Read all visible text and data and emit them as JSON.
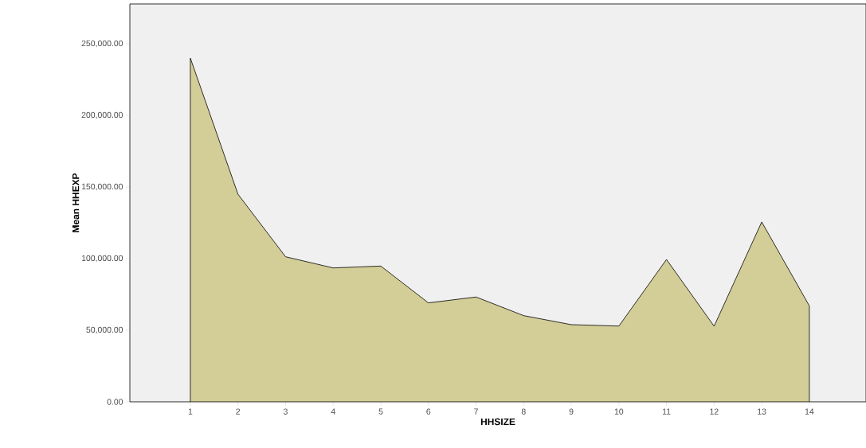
{
  "chart_data": {
    "type": "area",
    "xlabel": "HHSIZE",
    "ylabel": "Mean HHEXP",
    "x": [
      1,
      2,
      3,
      4,
      5,
      6,
      7,
      8,
      9,
      10,
      11,
      12,
      13,
      14
    ],
    "values": [
      240000,
      145000,
      101300,
      93500,
      94800,
      69100,
      73200,
      60200,
      53900,
      52900,
      99400,
      52800,
      125600,
      67000
    ],
    "color": "#d3cd97",
    "xlim": [
      -0.27,
      15.19
    ],
    "ylim": [
      0,
      277800
    ],
    "xticks": [
      1,
      2,
      3,
      4,
      5,
      6,
      7,
      8,
      9,
      10,
      11,
      12,
      13,
      14
    ],
    "yticks": [
      {
        "value": 0,
        "label": "0.00"
      },
      {
        "value": 50000,
        "label": "50,000.00"
      },
      {
        "value": 100000,
        "label": "100,000.00"
      },
      {
        "value": 150000,
        "label": "150,000.00"
      },
      {
        "value": 200000,
        "label": "200,000.00"
      },
      {
        "value": 250000,
        "label": "250,000.00"
      }
    ]
  }
}
